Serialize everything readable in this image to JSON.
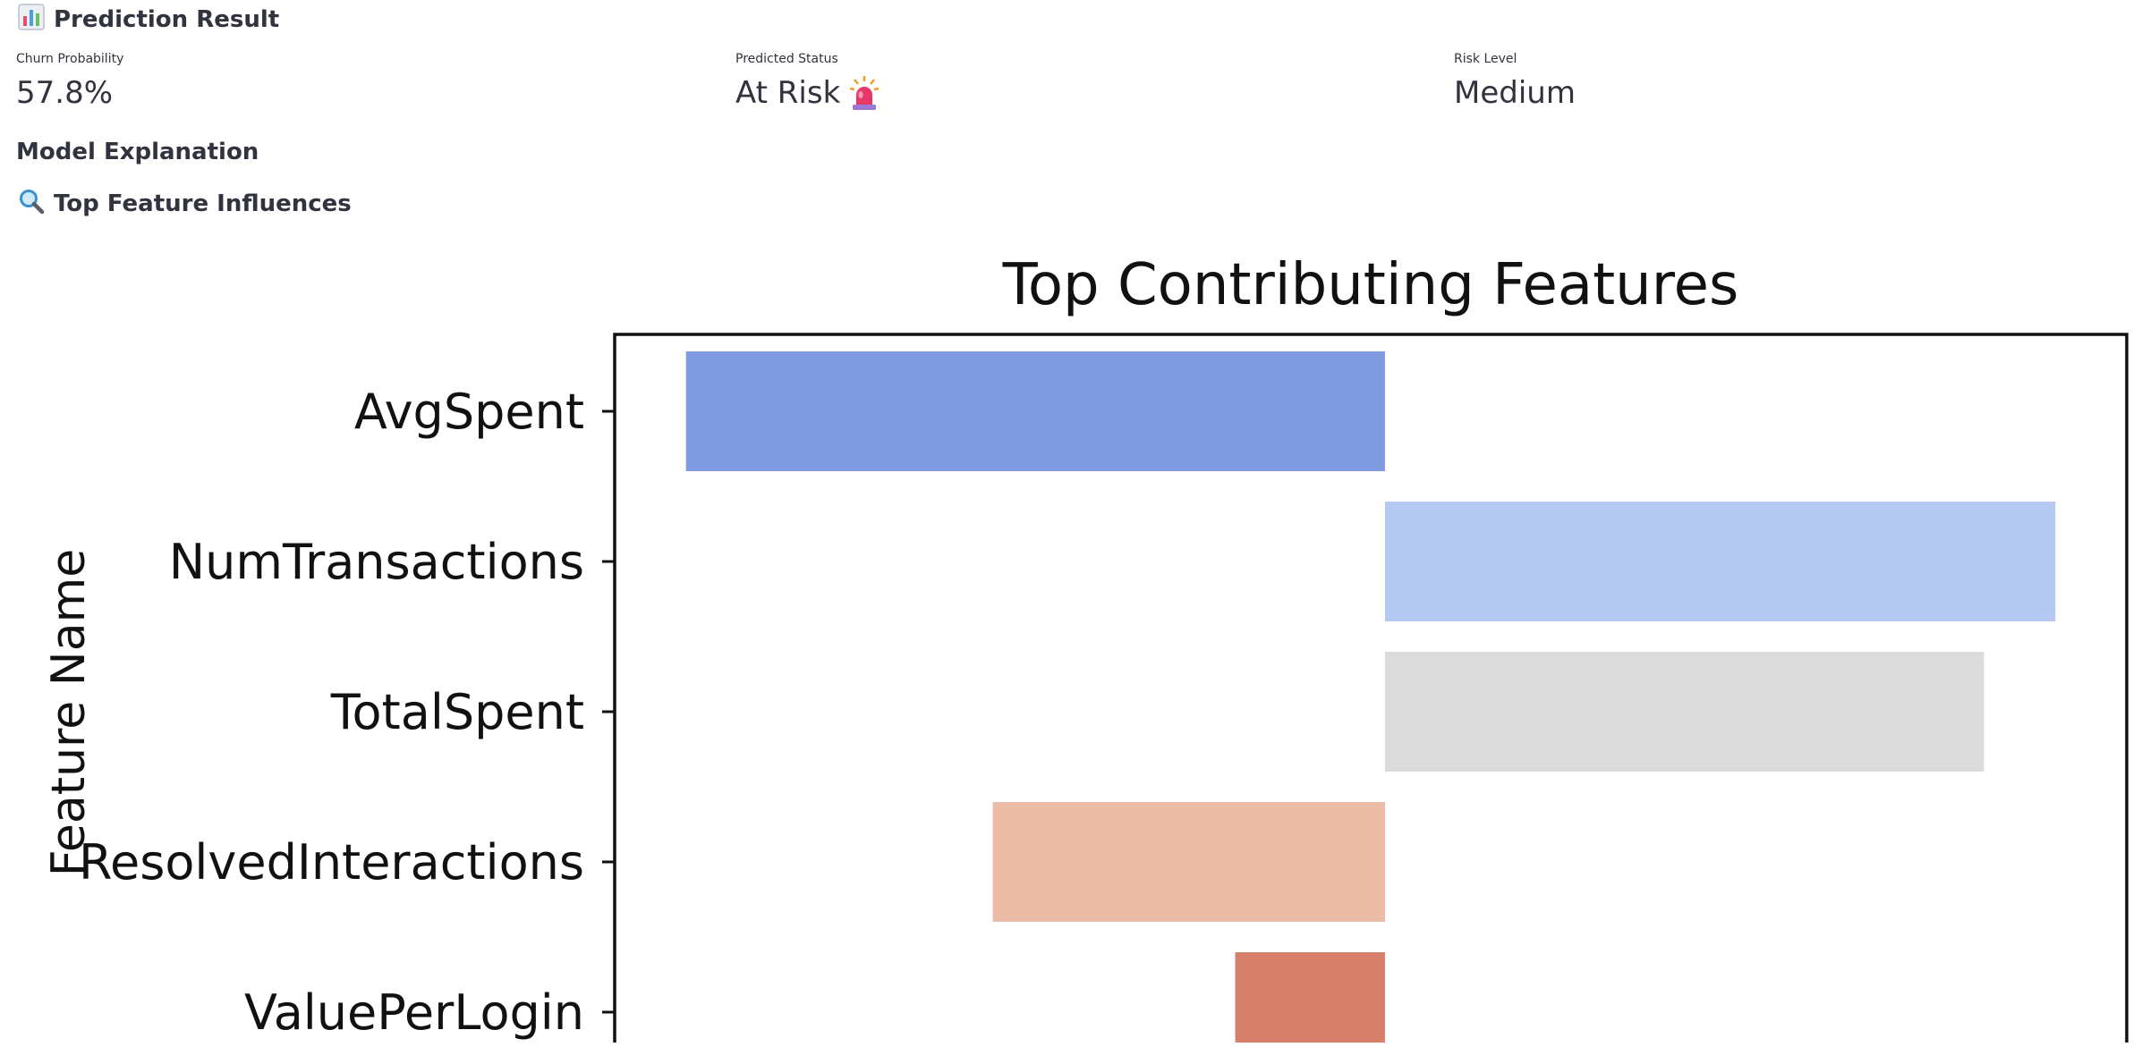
{
  "header": {
    "icon": "bar-chart-emoji",
    "title": "Prediction Result"
  },
  "metrics": {
    "churn_probability": {
      "label": "Churn Probability",
      "value": "57.8%"
    },
    "predicted_status": {
      "label": "Predicted Status",
      "value": "At Risk",
      "icon": "siren-emoji"
    },
    "risk_level": {
      "label": "Risk Level",
      "value": "Medium"
    }
  },
  "explanation": {
    "title": "Model Explanation"
  },
  "influences": {
    "icon": "magnifier-emoji",
    "title": "Top Feature Influences"
  },
  "chart_data": {
    "type": "bar",
    "orientation": "horizontal",
    "title": "Top Contributing Features",
    "ylabel": "Feature Name",
    "xlabel": "",
    "categories": [
      "AvgSpent",
      "NumTransactions",
      "TotalSpent",
      "ResolvedInteractions",
      "ValuePerLogin"
    ],
    "values": [
      -0.49,
      0.47,
      0.42,
      -0.275,
      -0.105
    ],
    "colors": [
      "#819be2",
      "#b5c9f3",
      "#dcdcdc",
      "#ecbca6",
      "#d67f6b"
    ],
    "xlim": [
      -0.54,
      0.52
    ],
    "grid": false
  }
}
